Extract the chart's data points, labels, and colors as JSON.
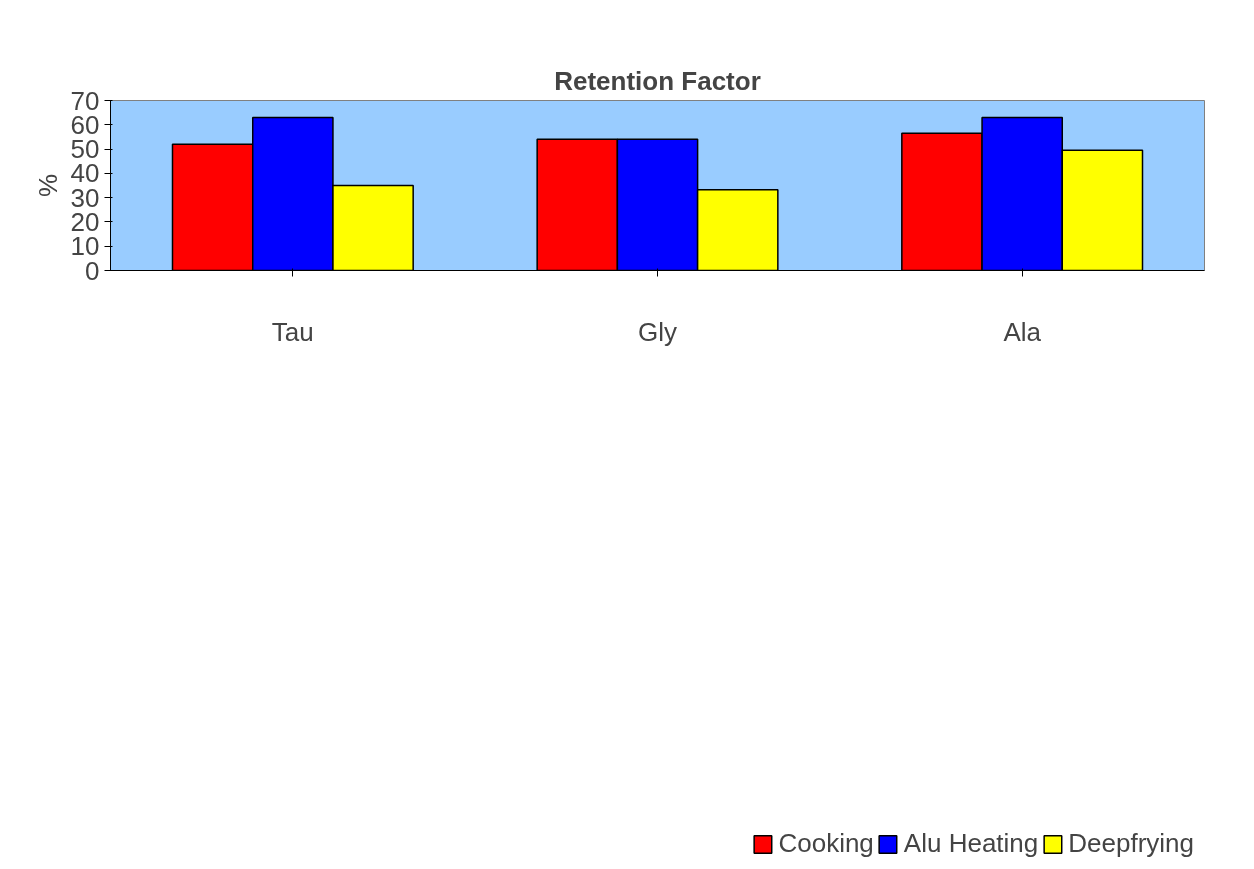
{
  "chart_data": {
    "type": "bar",
    "title": "Retention Factor",
    "ylabel": "%",
    "categories": [
      "Tau",
      "Gly",
      "Ala"
    ],
    "series": [
      {
        "name": "Cooking",
        "color": "#ff0000",
        "values": [
          52,
          54,
          56.5
        ]
      },
      {
        "name": "Alu Heating",
        "color": "#0000ff",
        "values": [
          63,
          54,
          63
        ]
      },
      {
        "name": "Deepfrying",
        "color": "#ffff00",
        "values": [
          35,
          33.3,
          49.5
        ]
      }
    ],
    "ylim": [
      0,
      70
    ],
    "yticks": [
      0,
      10,
      20,
      30,
      40,
      50,
      60,
      70
    ],
    "grid": false,
    "legend": "bottom right"
  }
}
